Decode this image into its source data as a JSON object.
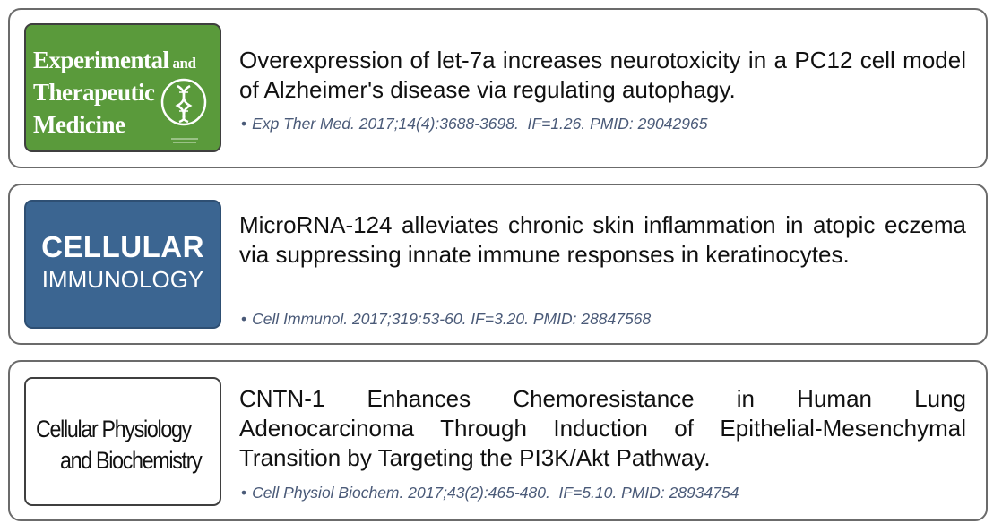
{
  "publications": [
    {
      "journal_logo": {
        "line1": "Experimental",
        "line1_suffix": "and",
        "line2": "Therapeutic",
        "line3": "Medicine",
        "background": "#5a9a3b",
        "emblem_icon": "dna-helix-emblem-icon"
      },
      "title": "Overexpression of let-7a increases neurotoxicity in a PC12 cell model of Alzheimer's disease via regulating autophagy.",
      "bullet": "•",
      "citation": "Exp Ther Med. 2017;14(4):3688-3698.  IF=1.26. PMID: 29042965"
    },
    {
      "journal_logo": {
        "line1": "CELLULAR",
        "line2": "IMMUNOLOGY",
        "background": "#3b6591"
      },
      "title": "MicroRNA-124 alleviates chronic skin inflammation in atopic eczema via suppressing innate immune responses in keratinocytes.",
      "bullet": "•",
      "citation": "Cell Immunol. 2017;319:53-60. IF=3.20. PMID: 28847568"
    },
    {
      "journal_logo": {
        "line1": "Cellular Physiology",
        "line2": "and Biochemistry",
        "background": "#ffffff"
      },
      "title": "CNTN-1 Enhances Chemoresistance in Human Lung Adenocarcinoma Through Induction of Epithelial-Mesenchymal Transition by Targeting the PI3K/Akt Pathway.",
      "bullet": "•",
      "citation": "Cell Physiol Biochem. 2017;43(2):465-480.  IF=5.10. PMID: 28934754"
    }
  ],
  "colors": {
    "card_border": "#6b6b6b",
    "title_text": "#111111",
    "citation_text": "#4a5a78"
  }
}
